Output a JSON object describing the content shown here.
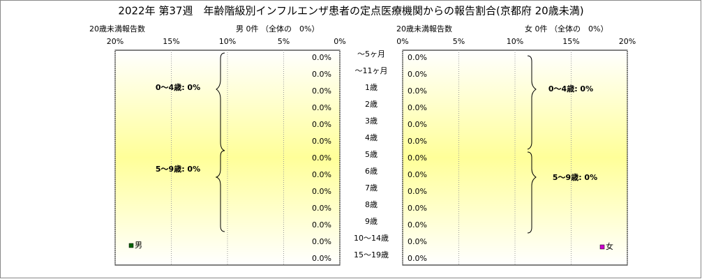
{
  "chart_data": {
    "type": "bar",
    "orientation": "horizontal",
    "title": "2022年 第37週　年齢階級別インフルエンザ患者の定点医療機関からの報告割合(京都府 20歳未満)",
    "count_label": "20歳未満報告数",
    "categories": [
      "～5ヶ月",
      "～11ヶ月",
      "1歳",
      "2歳",
      "3歳",
      "4歳",
      "5歳",
      "6歳",
      "7歳",
      "8歳",
      "9歳",
      "10～14歳",
      "15～19歳"
    ],
    "xlim": [
      0,
      20
    ],
    "xticks": [
      {
        "value": 0,
        "label": "0%"
      },
      {
        "value": 5,
        "label": "5%"
      },
      {
        "value": 10,
        "label": "10%"
      },
      {
        "value": 15,
        "label": "15%"
      },
      {
        "value": 20,
        "label": "20%"
      }
    ],
    "grid": true,
    "series": [
      {
        "name": "男",
        "color": "#006400",
        "summary": "男 0件 （全体の　0%）",
        "groups": [
          "0～4歳: 0%",
          "5～9歳: 0%"
        ],
        "values": [
          0,
          0,
          0,
          0,
          0,
          0,
          0,
          0,
          0,
          0,
          0,
          0,
          0
        ],
        "value_labels": [
          "0.0%",
          "0.0%",
          "0.0%",
          "0.0%",
          "0.0%",
          "0.0%",
          "0.0%",
          "0.0%",
          "0.0%",
          "0.0%",
          "0.0%",
          "0.0%",
          "0.0%"
        ]
      },
      {
        "name": "女",
        "color": "#cc00cc",
        "summary": "女 0件 （全体の　0%）",
        "groups": [
          "0～4歳: 0%",
          "5～9歳: 0%"
        ],
        "values": [
          0,
          0,
          0,
          0,
          0,
          0,
          0,
          0,
          0,
          0,
          0,
          0,
          0
        ],
        "value_labels": [
          "0.0%",
          "0.0%",
          "0.0%",
          "0.0%",
          "0.0%",
          "0.0%",
          "0.0%",
          "0.0%",
          "0.0%",
          "0.0%",
          "0.0%",
          "0.0%",
          "0.0%"
        ]
      }
    ]
  }
}
